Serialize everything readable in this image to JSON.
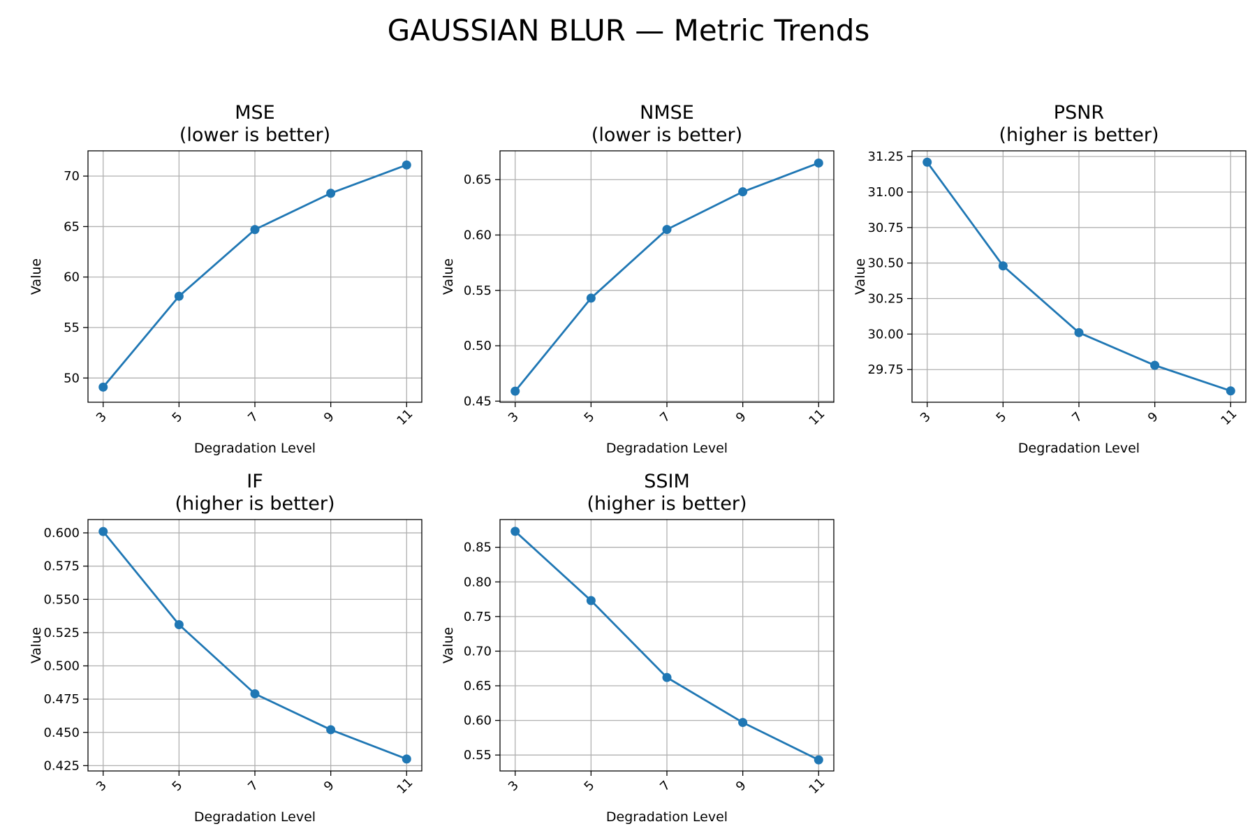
{
  "figure": {
    "title": "GAUSSIAN BLUR — Metric Trends"
  },
  "colors": {
    "series": "#1f77b4",
    "grid": "#b0b0b0",
    "axes": "#000000",
    "background": "#ffffff"
  },
  "chart_data": [
    {
      "type": "line",
      "title": "MSE\n(lower is better)",
      "xlabel": "Degradation Level",
      "ylabel": "Value",
      "x": [
        3,
        5,
        7,
        9,
        11
      ],
      "y": [
        49.1,
        58.1,
        64.7,
        68.3,
        71.1
      ],
      "ylim": [
        47.6,
        72.5
      ],
      "yticks": [
        50,
        55,
        60,
        65,
        70
      ],
      "yticklabels": [
        "50",
        "55",
        "60",
        "65",
        "70"
      ],
      "xticklabels": [
        "3",
        "5",
        "7",
        "9",
        "11"
      ],
      "grid": true,
      "marker": "circle"
    },
    {
      "type": "line",
      "title": "NMSE\n(lower is better)",
      "xlabel": "Degradation Level",
      "ylabel": "Value",
      "x": [
        3,
        5,
        7,
        9,
        11
      ],
      "y": [
        0.459,
        0.543,
        0.605,
        0.639,
        0.665
      ],
      "ylim": [
        0.449,
        0.676
      ],
      "yticks": [
        0.45,
        0.5,
        0.55,
        0.6,
        0.65
      ],
      "yticklabels": [
        "0.45",
        "0.50",
        "0.55",
        "0.60",
        "0.65"
      ],
      "xticklabels": [
        "3",
        "5",
        "7",
        "9",
        "11"
      ],
      "grid": true,
      "marker": "circle"
    },
    {
      "type": "line",
      "title": "PSNR\n(higher is better)",
      "xlabel": "Degradation Level",
      "ylabel": "Value",
      "x": [
        3,
        5,
        7,
        9,
        11
      ],
      "y": [
        31.21,
        30.48,
        30.01,
        29.78,
        29.6
      ],
      "ylim": [
        29.52,
        31.29
      ],
      "yticks": [
        29.75,
        30.0,
        30.25,
        30.5,
        30.75,
        31.0,
        31.25
      ],
      "yticklabels": [
        "29.75",
        "30.00",
        "30.25",
        "30.50",
        "30.75",
        "31.00",
        "31.25"
      ],
      "xticklabels": [
        "3",
        "5",
        "7",
        "9",
        "11"
      ],
      "grid": true,
      "marker": "circle"
    },
    {
      "type": "line",
      "title": "IF\n(higher is better)",
      "xlabel": "Degradation Level",
      "ylabel": "Value",
      "x": [
        3,
        5,
        7,
        9,
        11
      ],
      "y": [
        0.601,
        0.531,
        0.479,
        0.452,
        0.43
      ],
      "ylim": [
        0.421,
        0.61
      ],
      "yticks": [
        0.425,
        0.45,
        0.475,
        0.5,
        0.525,
        0.55,
        0.575,
        0.6
      ],
      "yticklabels": [
        "0.425",
        "0.450",
        "0.475",
        "0.500",
        "0.525",
        "0.550",
        "0.575",
        "0.600"
      ],
      "xticklabels": [
        "3",
        "5",
        "7",
        "9",
        "11"
      ],
      "grid": true,
      "marker": "circle"
    },
    {
      "type": "line",
      "title": "SSIM\n(higher is better)",
      "xlabel": "Degradation Level",
      "ylabel": "Value",
      "x": [
        3,
        5,
        7,
        9,
        11
      ],
      "y": [
        0.873,
        0.773,
        0.662,
        0.597,
        0.543
      ],
      "ylim": [
        0.527,
        0.89
      ],
      "yticks": [
        0.55,
        0.6,
        0.65,
        0.7,
        0.75,
        0.8,
        0.85
      ],
      "yticklabels": [
        "0.55",
        "0.60",
        "0.65",
        "0.70",
        "0.75",
        "0.80",
        "0.85"
      ],
      "xticklabels": [
        "3",
        "5",
        "7",
        "9",
        "11"
      ],
      "grid": true,
      "marker": "circle"
    }
  ]
}
